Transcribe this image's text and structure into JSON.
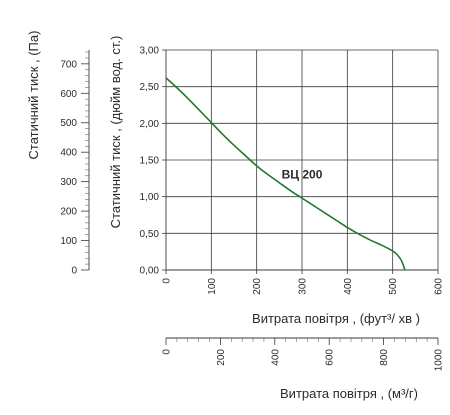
{
  "chart_data": {
    "type": "line",
    "primary_y_axis": {
      "label": "Статичний тиск , (дюйм вод. ст.)",
      "range": [
        0,
        3
      ],
      "tick_values": [
        0,
        0.5,
        1,
        1.5,
        2,
        2.5,
        3
      ],
      "tick_labels": [
        "0,00",
        "0,50",
        "1,00",
        "1,50",
        "2,00",
        "2,50",
        "3,00"
      ]
    },
    "secondary_y_axis": {
      "label": "Статичний тиск , (Па)",
      "range": [
        0,
        747
      ],
      "tick_values": [
        0,
        100,
        200,
        300,
        400,
        500,
        600,
        700
      ],
      "tick_labels": [
        "0",
        "100",
        "200",
        "300",
        "400",
        "500",
        "600",
        "700"
      ]
    },
    "primary_x_axis": {
      "label": "Витрата повітря , (фут³/  хв )",
      "range": [
        0,
        600
      ],
      "tick_values": [
        0,
        100,
        200,
        300,
        400,
        500,
        600
      ],
      "tick_labels": [
        "0",
        "100",
        "200",
        "300",
        "400",
        "500",
        "600"
      ]
    },
    "secondary_x_axis": {
      "label": "Витрата повітря , (м³/г)",
      "range": [
        0,
        1000
      ],
      "tick_values": [
        0,
        200,
        400,
        600,
        800,
        1000
      ],
      "tick_labels": [
        "0",
        "200",
        "400",
        "600",
        "800",
        "1000"
      ]
    },
    "grid": true,
    "series": [
      {
        "name": "ВЦ 200",
        "color": "#1f7a2e",
        "x": [
          0,
          25,
          50,
          75,
          100,
          125,
          150,
          175,
          200,
          225,
          250,
          275,
          300,
          325,
          350,
          375,
          400,
          425,
          450,
          475,
          500,
          510,
          520,
          527
        ],
        "y": [
          2.62,
          2.48,
          2.33,
          2.17,
          2.01,
          1.85,
          1.7,
          1.56,
          1.42,
          1.3,
          1.19,
          1.08,
          0.98,
          0.88,
          0.78,
          0.68,
          0.58,
          0.49,
          0.41,
          0.34,
          0.26,
          0.21,
          0.12,
          0.0
        ]
      }
    ]
  }
}
